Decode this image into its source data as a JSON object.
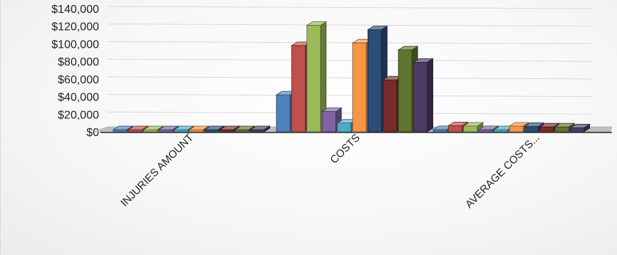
{
  "chart_data": {
    "type": "bar",
    "style": "3d-clustered-column",
    "categories": [
      "INJURIES AMOUNT",
      "COSTS",
      "AVERAGE COSTS..."
    ],
    "y_ticks": [
      "$140,000",
      "$120,000",
      "$100,000",
      "$80,000",
      "$60,000",
      "$40,000",
      "$20,000",
      "$0"
    ],
    "ylim": [
      0,
      140000
    ],
    "grid": true,
    "legend": "none",
    "series": [
      {
        "color": "#4f81bd",
        "values": [
          0,
          42000,
          2500
        ]
      },
      {
        "color": "#c0504d",
        "values": [
          0,
          98000,
          7000
        ]
      },
      {
        "color": "#9bbb59",
        "values": [
          0,
          121000,
          6500
        ]
      },
      {
        "color": "#8064a2",
        "values": [
          0,
          23000,
          2500
        ]
      },
      {
        "color": "#4bacc6",
        "values": [
          0,
          10000,
          1500
        ]
      },
      {
        "color": "#f79646",
        "values": [
          0,
          101000,
          6500
        ]
      },
      {
        "color": "#2c4d75",
        "values": [
          0,
          116000,
          6000
        ]
      },
      {
        "color": "#772c2a",
        "values": [
          0,
          59000,
          5500
        ]
      },
      {
        "color": "#5f7530",
        "values": [
          0,
          93000,
          5500
        ]
      },
      {
        "color": "#4d3b62",
        "values": [
          0,
          79000,
          4500
        ]
      }
    ]
  }
}
